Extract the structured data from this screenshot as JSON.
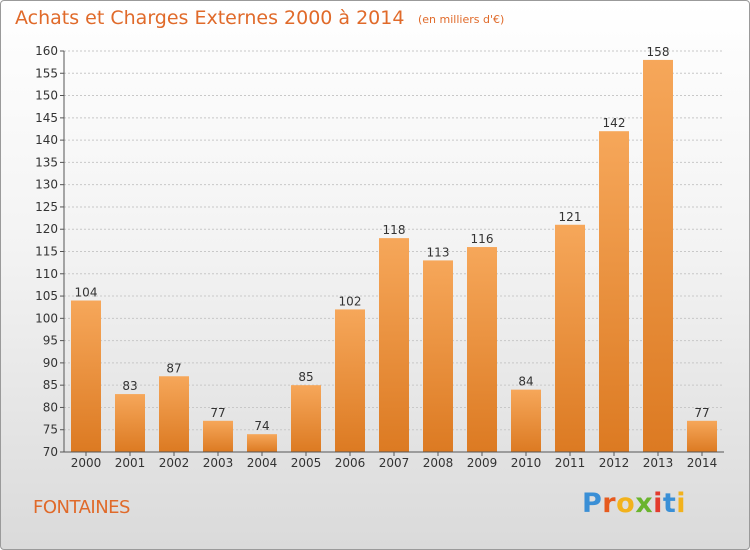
{
  "header": {
    "title": "Achats et Charges Externes 2000 à 2014",
    "subtitle": "(en milliers d'€)"
  },
  "footer": {
    "label": "FONTAINES",
    "logo_letters": [
      "P",
      "r",
      "o",
      "x",
      "i",
      "t",
      "i"
    ],
    "logo_colors": [
      "#3a8fd6",
      "#e65a1e",
      "#f2b21c",
      "#6ab42d",
      "#e33b2e",
      "#3a8fd6",
      "#f2b21c"
    ]
  },
  "colors": {
    "bar_light": "#f6a75a",
    "bar_dark": "#dc7a22",
    "text": "#e06a2a"
  },
  "chart_data": {
    "type": "bar",
    "categories": [
      "2000",
      "2001",
      "2002",
      "2003",
      "2004",
      "2005",
      "2006",
      "2007",
      "2008",
      "2009",
      "2010",
      "2011",
      "2012",
      "2013",
      "2014"
    ],
    "values": [
      104,
      83,
      87,
      77,
      74,
      85,
      102,
      118,
      113,
      116,
      84,
      121,
      142,
      158,
      77
    ],
    "ylim": [
      70,
      160
    ],
    "yticks": [
      70,
      75,
      80,
      85,
      90,
      95,
      100,
      105,
      110,
      115,
      120,
      125,
      130,
      135,
      140,
      145,
      150,
      155,
      160
    ],
    "grid": true,
    "data_labels": true
  }
}
